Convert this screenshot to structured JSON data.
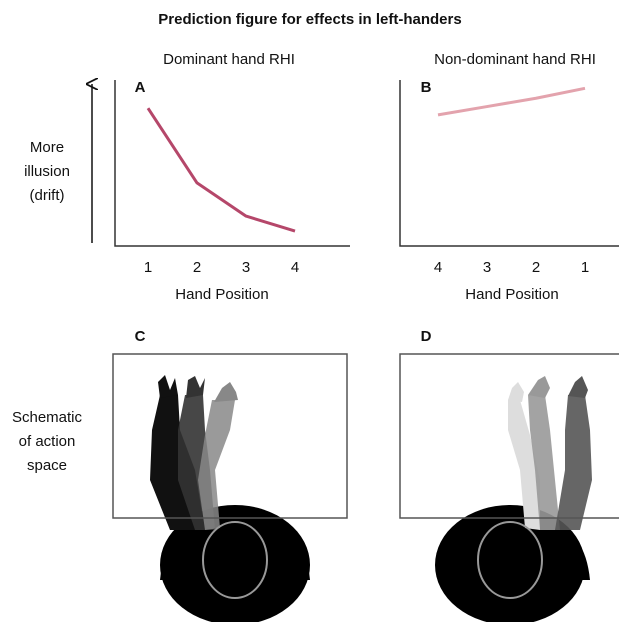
{
  "title": "Prediction figure for effects in left-handers",
  "chart_data": [
    {
      "type": "line",
      "panel": "A",
      "title": "Dominant hand RHI",
      "ylabel": [
        "More",
        "illusion",
        "(drift)"
      ],
      "xlabel": "Hand Position",
      "categories": [
        "1",
        "2",
        "3",
        "4"
      ],
      "values": [
        8.3,
        3.8,
        1.8,
        0.9
      ],
      "color": "#b5476a",
      "ylim": [
        0,
        10
      ]
    },
    {
      "type": "line",
      "panel": "B",
      "title": "Non-dominant hand RHI",
      "xlabel": "Hand Position",
      "categories": [
        "4",
        "3",
        "2",
        "1"
      ],
      "values": [
        7.9,
        8.4,
        8.9,
        9.5
      ],
      "color": "#e3a3ad",
      "ylim": [
        0,
        10
      ]
    }
  ],
  "schematic": {
    "label": [
      "Schematic",
      "of action",
      "space"
    ],
    "panels": [
      "C",
      "D"
    ]
  }
}
